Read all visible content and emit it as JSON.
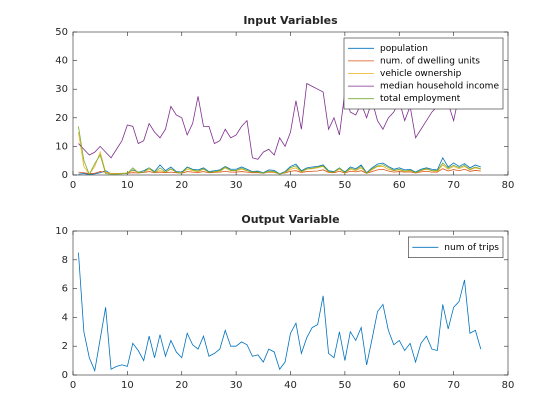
{
  "chart_data": [
    {
      "type": "line",
      "title": "Input Variables",
      "x": [
        1,
        2,
        3,
        4,
        5,
        6,
        7,
        8,
        9,
        10,
        11,
        12,
        13,
        14,
        15,
        16,
        17,
        18,
        19,
        20,
        21,
        22,
        23,
        24,
        25,
        26,
        27,
        28,
        29,
        30,
        31,
        32,
        33,
        34,
        35,
        36,
        37,
        38,
        39,
        40,
        41,
        42,
        43,
        44,
        45,
        46,
        47,
        48,
        49,
        50,
        51,
        52,
        53,
        54,
        55,
        56,
        57,
        58,
        59,
        60,
        61,
        62,
        63,
        64,
        65,
        66,
        67,
        68,
        69,
        70,
        71,
        72,
        73,
        74,
        75
      ],
      "series": [
        {
          "name": "population",
          "color": "#0072bd",
          "values": [
            0.3,
            0.5,
            0.2,
            0.4,
            0.8,
            1.5,
            0.4,
            0.5,
            0.6,
            0.5,
            1.8,
            1.0,
            1.5,
            2.5,
            1.2,
            3.5,
            1.5,
            2.8,
            1.2,
            1.0,
            2.8,
            2.0,
            1.8,
            2.5,
            1.2,
            1.5,
            1.8,
            3.0,
            2.0,
            2.0,
            2.8,
            2.0,
            1.2,
            1.4,
            0.8,
            1.8,
            1.6,
            0.4,
            1.2,
            3.0,
            3.8,
            1.5,
            2.5,
            2.8,
            3.0,
            3.5,
            1.5,
            1.2,
            2.5,
            1.0,
            2.8,
            2.2,
            3.5,
            0.8,
            2.5,
            3.8,
            4.2,
            3.0,
            2.0,
            2.5,
            1.8,
            2.0,
            1.0,
            2.0,
            2.5,
            2.0,
            1.8,
            6.0,
            2.8,
            4.2,
            3.0,
            4.0,
            2.5,
            3.5,
            2.8
          ]
        },
        {
          "name": "num. of dwelling units",
          "color": "#d95319",
          "values": [
            1.0,
            0.8,
            0.5,
            0.6,
            1.2,
            1.0,
            0.5,
            0.5,
            0.5,
            0.6,
            0.8,
            0.7,
            0.9,
            1.2,
            0.8,
            1.0,
            0.8,
            1.0,
            0.8,
            0.6,
            1.2,
            1.0,
            0.9,
            1.2,
            0.8,
            0.9,
            1.0,
            1.3,
            1.0,
            1.0,
            1.2,
            1.0,
            0.8,
            0.8,
            0.6,
            1.0,
            0.9,
            0.4,
            0.7,
            1.3,
            1.5,
            0.9,
            1.2,
            1.3,
            1.4,
            1.8,
            0.9,
            0.8,
            1.3,
            0.7,
            1.3,
            1.1,
            1.5,
            0.6,
            1.2,
            1.8,
            2.0,
            1.4,
            1.0,
            1.2,
            1.0,
            1.1,
            0.7,
            1.1,
            1.3,
            1.0,
            1.0,
            2.2,
            1.4,
            1.9,
            1.5,
            2.0,
            1.3,
            1.6,
            1.4
          ]
        },
        {
          "name": "vehicle ownership",
          "color": "#edb120",
          "values": [
            15,
            3,
            0.3,
            3,
            8,
            1,
            0.5,
            0.5,
            0.5,
            0.8,
            1.5,
            1,
            1,
            2,
            1,
            1.5,
            1,
            2,
            1,
            0.8,
            2,
            1.5,
            1.2,
            2,
            1,
            1,
            1.2,
            2.5,
            1.5,
            1.5,
            2,
            1.5,
            1,
            1,
            0.6,
            1.2,
            1,
            0.3,
            0.8,
            2,
            2.5,
            1,
            2,
            2.2,
            2.5,
            3,
            1,
            1,
            2,
            0.8,
            2,
            1.5,
            2.5,
            0.6,
            1.8,
            3,
            3,
            2,
            1.5,
            1.8,
            1.2,
            1.5,
            0.8,
            1.5,
            2,
            1.5,
            1.2,
            3.5,
            2,
            3,
            2.2,
            3,
            1.8,
            2.5,
            2
          ]
        },
        {
          "name": "median household income",
          "color": "#7e2f8e",
          "values": [
            11,
            9,
            7,
            8,
            10,
            8,
            6,
            9,
            12,
            17.5,
            17,
            11,
            12,
            18,
            15,
            13,
            16,
            24,
            21,
            20,
            14,
            18,
            27.5,
            17,
            17,
            11,
            12,
            16,
            13,
            14,
            17,
            19,
            6,
            5.5,
            8,
            9,
            7,
            13,
            10,
            15,
            26,
            16,
            32,
            31,
            30,
            29,
            16,
            20,
            14,
            29,
            22,
            21,
            25,
            20,
            26,
            19,
            16,
            20,
            22,
            26,
            19,
            24,
            13,
            16,
            19,
            22,
            24,
            28,
            25,
            19,
            28,
            32,
            30,
            33,
            31
          ]
        },
        {
          "name": "total employment",
          "color": "#77ac30",
          "values": [
            17,
            5,
            0.2,
            4,
            7,
            0.5,
            0.3,
            0.3,
            0.4,
            0.6,
            2.5,
            0.8,
            1,
            2.5,
            0.8,
            2.5,
            1,
            2.2,
            1,
            0.6,
            2.6,
            1.8,
            1.4,
            2.2,
            0.9,
            1.2,
            1.5,
            2.8,
            1.6,
            1.6,
            2.4,
            1.6,
            1,
            1.1,
            0.6,
            1.4,
            1.2,
            0.3,
            0.9,
            2.6,
            3.2,
            1.2,
            2.2,
            2.4,
            2.8,
            3.2,
            1.2,
            1,
            2.4,
            0.8,
            2.4,
            1.8,
            3,
            0.6,
            2.2,
            3.2,
            3.6,
            2.6,
            1.6,
            2,
            1.4,
            1.7,
            0.8,
            1.7,
            2.2,
            1.6,
            1.5,
            4.2,
            2.4,
            3.4,
            2.6,
            3.4,
            2,
            2.8,
            2.2
          ]
        }
      ],
      "xlim": [
        0,
        80
      ],
      "xticks": [
        0,
        10,
        20,
        30,
        40,
        50,
        60,
        70,
        80
      ],
      "ylim": [
        0,
        50
      ],
      "yticks": [
        0,
        10,
        20,
        30,
        40,
        50
      ],
      "legend": "northeast"
    },
    {
      "type": "line",
      "title": "Output Variable",
      "x": [
        1,
        2,
        3,
        4,
        5,
        6,
        7,
        8,
        9,
        10,
        11,
        12,
        13,
        14,
        15,
        16,
        17,
        18,
        19,
        20,
        21,
        22,
        23,
        24,
        25,
        26,
        27,
        28,
        29,
        30,
        31,
        32,
        33,
        34,
        35,
        36,
        37,
        38,
        39,
        40,
        41,
        42,
        43,
        44,
        45,
        46,
        47,
        48,
        49,
        50,
        51,
        52,
        53,
        54,
        55,
        56,
        57,
        58,
        59,
        60,
        61,
        62,
        63,
        64,
        65,
        66,
        67,
        68,
        69,
        70,
        71,
        72,
        73,
        74,
        75
      ],
      "series": [
        {
          "name": "num of trips",
          "color": "#0072bd",
          "values": [
            8.5,
            3,
            1.2,
            0.3,
            2.5,
            4.7,
            0.4,
            0.6,
            0.7,
            0.6,
            2.2,
            1.7,
            1.0,
            2.7,
            1.2,
            2.8,
            1.3,
            2.4,
            1.6,
            1.2,
            2.9,
            2.1,
            1.8,
            2.7,
            1.3,
            1.5,
            1.8,
            3.1,
            2.0,
            2.0,
            2.3,
            2.1,
            1.3,
            1.4,
            0.9,
            1.8,
            1.6,
            0.4,
            0.9,
            2.9,
            3.6,
            1.5,
            2.6,
            3.3,
            3.5,
            5.5,
            1.5,
            1.2,
            3.0,
            1.0,
            3.0,
            2.4,
            3.3,
            0.7,
            2.5,
            4.4,
            4.9,
            3.1,
            2.1,
            2.4,
            1.7,
            2.2,
            0.9,
            2.2,
            2.7,
            1.8,
            1.7,
            4.9,
            3.2,
            4.7,
            5.1,
            6.6,
            2.9,
            3.1,
            1.8
          ]
        }
      ],
      "xlim": [
        0,
        80
      ],
      "xticks": [
        0,
        10,
        20,
        30,
        40,
        50,
        60,
        70,
        80
      ],
      "ylim": [
        0,
        10
      ],
      "yticks": [
        0,
        2,
        4,
        6,
        8,
        10
      ],
      "legend": "northeast"
    }
  ]
}
